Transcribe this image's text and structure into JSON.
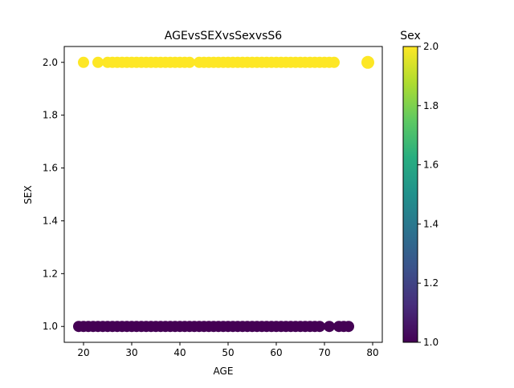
{
  "chart_data": {
    "type": "scatter",
    "title": "AGEvsSEXvsSexvsS6",
    "xlabel": "AGE",
    "ylabel": "SEX",
    "xlim": [
      16,
      82
    ],
    "ylim": [
      0.94,
      2.06
    ],
    "xticks": [
      20,
      30,
      40,
      50,
      60,
      70,
      80
    ],
    "yticks": [
      1.0,
      1.2,
      1.4,
      1.6,
      1.8,
      2.0
    ],
    "grid": false,
    "colorbar": {
      "label": "Sex",
      "range": [
        1.0,
        2.0
      ],
      "ticks": [
        1.0,
        1.2,
        1.4,
        1.6,
        1.8,
        2.0
      ],
      "colormap": "viridis"
    },
    "colors": {
      "sex_1": "#440154",
      "sex_2": "#fde725"
    },
    "series": [
      {
        "color_value": 2,
        "x": [
          20,
          23,
          25,
          26,
          27,
          28,
          29,
          30,
          31,
          32,
          33,
          34,
          35,
          36,
          37,
          38,
          39,
          40,
          41,
          42,
          44,
          45,
          46,
          47,
          48,
          49,
          50,
          51,
          52,
          53,
          54,
          55,
          56,
          57,
          58,
          59,
          60,
          61,
          62,
          63,
          64,
          65,
          66,
          67,
          68,
          69,
          70,
          71,
          72,
          79
        ],
        "y": [
          2,
          2,
          2,
          2,
          2,
          2,
          2,
          2,
          2,
          2,
          2,
          2,
          2,
          2,
          2,
          2,
          2,
          2,
          2,
          2,
          2,
          2,
          2,
          2,
          2,
          2,
          2,
          2,
          2,
          2,
          2,
          2,
          2,
          2,
          2,
          2,
          2,
          2,
          2,
          2,
          2,
          2,
          2,
          2,
          2,
          2,
          2,
          2,
          2,
          2
        ]
      },
      {
        "color_value": 1,
        "x": [
          19,
          20,
          21,
          22,
          23,
          24,
          25,
          26,
          27,
          28,
          29,
          30,
          31,
          32,
          33,
          34,
          35,
          36,
          37,
          38,
          39,
          40,
          41,
          42,
          43,
          44,
          45,
          46,
          47,
          48,
          49,
          50,
          51,
          52,
          53,
          54,
          55,
          56,
          57,
          58,
          59,
          60,
          61,
          62,
          63,
          64,
          65,
          66,
          67,
          68,
          69,
          71,
          73,
          74,
          75
        ],
        "y": [
          1,
          1,
          1,
          1,
          1,
          1,
          1,
          1,
          1,
          1,
          1,
          1,
          1,
          1,
          1,
          1,
          1,
          1,
          1,
          1,
          1,
          1,
          1,
          1,
          1,
          1,
          1,
          1,
          1,
          1,
          1,
          1,
          1,
          1,
          1,
          1,
          1,
          1,
          1,
          1,
          1,
          1,
          1,
          1,
          1,
          1,
          1,
          1,
          1,
          1,
          1,
          1,
          1,
          1,
          1
        ]
      }
    ]
  }
}
